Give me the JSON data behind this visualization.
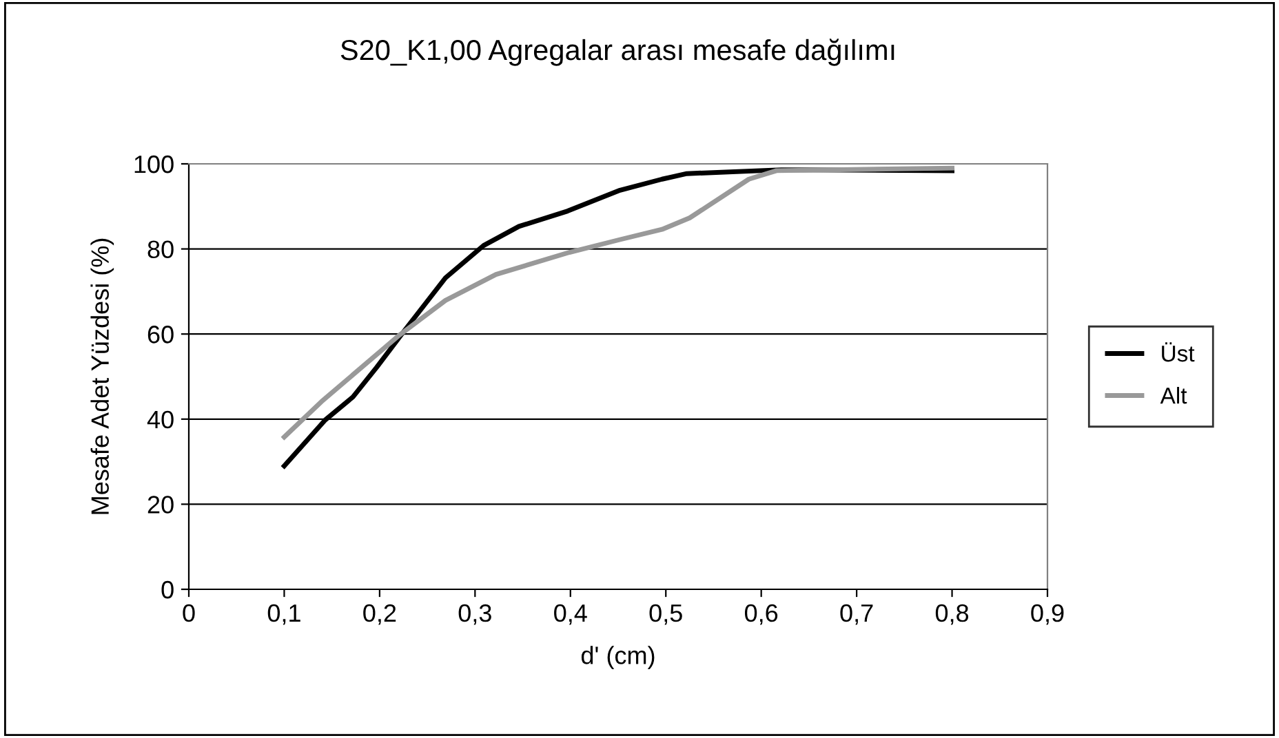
{
  "chart_data": {
    "type": "line",
    "title": "S20_K1,00 Agregalar arası mesafe dağılımı",
    "xlabel": "d' (cm)",
    "ylabel": "Mesafe Adet Yüzdesi (%)",
    "series": [
      {
        "name": "Üst",
        "color": "#000000",
        "x": [
          0.1,
          0.143,
          0.172,
          0.197,
          0.226,
          0.269,
          0.309,
          0.346,
          0.397,
          0.452,
          0.496,
          0.522,
          0.621,
          0.8
        ],
        "values": [
          29,
          39.8,
          45.2,
          52.2,
          60.8,
          73.2,
          80.8,
          85.3,
          88.9,
          93.8,
          96.4,
          97.7,
          98.6,
          98.4
        ]
      },
      {
        "name": "Alt",
        "color": "#999999",
        "x": [
          0.1,
          0.139,
          0.221,
          0.269,
          0.322,
          0.399,
          0.452,
          0.496,
          0.525,
          0.587,
          0.616,
          0.8
        ],
        "values": [
          35.8,
          44.1,
          59.8,
          67.9,
          74,
          79.2,
          82.2,
          84.6,
          87.3,
          96.4,
          98.4,
          99
        ]
      }
    ],
    "xlim": [
      0,
      0.9
    ],
    "ylim": [
      0,
      100
    ],
    "xticks": [
      0,
      {
        "value": 0.1,
        "label": "0,1"
      },
      {
        "value": 0.2,
        "label": "0,2"
      },
      {
        "value": 0.3,
        "label": "0,3"
      },
      {
        "value": 0.4,
        "label": "0,4"
      },
      {
        "value": 0.5,
        "label": "0,5"
      },
      {
        "value": 0.6,
        "label": "0,6"
      },
      {
        "value": 0.7,
        "label": "0,7"
      },
      {
        "value": 0.8,
        "label": "0,8"
      },
      {
        "value": 0.9,
        "label": "0,9"
      }
    ],
    "yticks": [
      0,
      20,
      40,
      60,
      80,
      100
    ],
    "grid": "y",
    "legend": "right",
    "marker": "none",
    "line_style": "solid"
  }
}
